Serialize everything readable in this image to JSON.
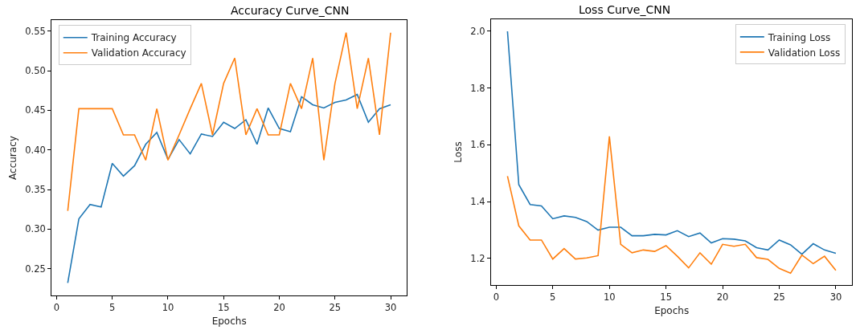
{
  "chart_data": [
    {
      "type": "line",
      "title": "Accuracy Curve_CNN",
      "xlabel": "Epochs",
      "ylabel": "Accuracy",
      "x": [
        1,
        2,
        3,
        4,
        5,
        6,
        7,
        8,
        9,
        10,
        11,
        12,
        13,
        14,
        15,
        16,
        17,
        18,
        19,
        20,
        21,
        22,
        23,
        24,
        25,
        26,
        27,
        28,
        29,
        30
      ],
      "series": [
        {
          "name": "Training Accuracy",
          "color": "#1f77b4",
          "values": [
            0.232,
            0.313,
            0.331,
            0.328,
            0.383,
            0.367,
            0.38,
            0.407,
            0.422,
            0.388,
            0.413,
            0.395,
            0.42,
            0.417,
            0.435,
            0.427,
            0.438,
            0.407,
            0.453,
            0.427,
            0.423,
            0.467,
            0.457,
            0.453,
            0.46,
            0.463,
            0.47,
            0.435,
            0.452,
            0.457
          ]
        },
        {
          "name": "Validation Accuracy",
          "color": "#ff7f0e",
          "values": [
            0.323,
            0.452,
            0.452,
            0.452,
            0.452,
            0.419,
            0.419,
            0.387,
            0.452,
            0.387,
            0.419,
            0.452,
            0.484,
            0.419,
            0.484,
            0.516,
            0.419,
            0.452,
            0.419,
            0.419,
            0.484,
            0.452,
            0.516,
            0.387,
            0.484,
            0.548,
            0.452,
            0.516,
            0.419,
            0.548
          ]
        }
      ],
      "xlim": [
        -0.45,
        31.45
      ],
      "xticks": [
        0,
        5,
        10,
        15,
        20,
        25,
        30
      ],
      "ylim": [
        0.216,
        0.564
      ],
      "yticks": [
        {
          "value": 0.25,
          "label": "0.25"
        },
        {
          "value": 0.3,
          "label": "0.30"
        },
        {
          "value": 0.35,
          "label": "0.35"
        },
        {
          "value": 0.4,
          "label": "0.40"
        },
        {
          "value": 0.45,
          "label": "0.45"
        },
        {
          "value": 0.5,
          "label": "0.50"
        },
        {
          "value": 0.55,
          "label": "0.55"
        }
      ],
      "legend": "top left"
    },
    {
      "type": "line",
      "title": "Loss Curve_CNN",
      "xlabel": "Epochs",
      "ylabel": "Loss",
      "x": [
        1,
        2,
        3,
        4,
        5,
        6,
        7,
        8,
        9,
        10,
        11,
        12,
        13,
        14,
        15,
        16,
        17,
        18,
        19,
        20,
        21,
        22,
        23,
        24,
        25,
        26,
        27,
        28,
        29,
        30
      ],
      "series": [
        {
          "name": "Training Loss",
          "color": "#1f77b4",
          "values": [
            2.0,
            1.46,
            1.39,
            1.385,
            1.34,
            1.35,
            1.345,
            1.33,
            1.3,
            1.31,
            1.31,
            1.28,
            1.28,
            1.285,
            1.283,
            1.298,
            1.277,
            1.29,
            1.255,
            1.27,
            1.268,
            1.262,
            1.238,
            1.23,
            1.265,
            1.248,
            1.215,
            1.252,
            1.23,
            1.218
          ]
        },
        {
          "name": "Validation Loss",
          "color": "#ff7f0e",
          "values": [
            1.49,
            1.315,
            1.265,
            1.265,
            1.198,
            1.235,
            1.198,
            1.202,
            1.21,
            1.63,
            1.25,
            1.22,
            1.23,
            1.225,
            1.245,
            1.208,
            1.167,
            1.22,
            1.18,
            1.25,
            1.243,
            1.25,
            1.203,
            1.197,
            1.165,
            1.148,
            1.212,
            1.182,
            1.208,
            1.158
          ]
        }
      ],
      "xlim": [
        -0.45,
        31.45
      ],
      "xticks": [
        0,
        5,
        10,
        15,
        20,
        25,
        30
      ],
      "ylim": [
        1.107,
        2.042
      ],
      "yticks": [
        {
          "value": 1.2,
          "label": "1.2"
        },
        {
          "value": 1.4,
          "label": "1.4"
        },
        {
          "value": 1.6,
          "label": "1.6"
        },
        {
          "value": 1.8,
          "label": "1.8"
        },
        {
          "value": 2.0,
          "label": "2.0"
        }
      ],
      "legend": "top right"
    }
  ]
}
